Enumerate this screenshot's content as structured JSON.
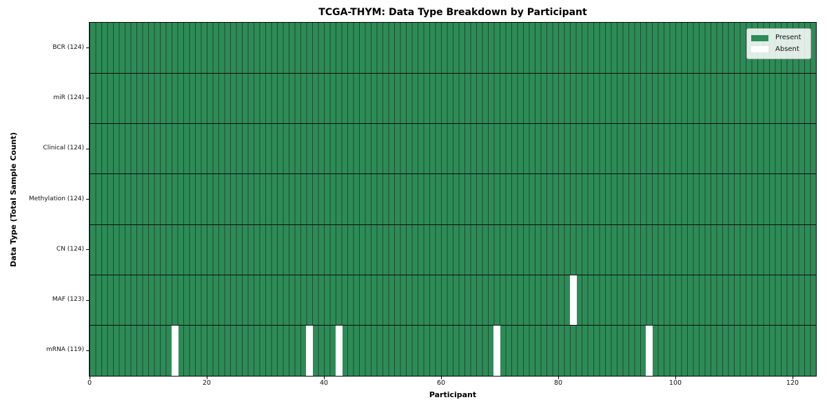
{
  "chart_data": {
    "type": "heatmap",
    "title": "TCGA-THYM: Data Type Breakdown by Participant",
    "xlabel": "Participant",
    "ylabel": "Data Type (Total Sample Count)",
    "x_range": [
      0,
      124
    ],
    "x_ticks": [
      0,
      20,
      40,
      60,
      80,
      100,
      120
    ],
    "n_participants": 124,
    "grid": true,
    "rows": [
      {
        "label": "BCR (124)",
        "data_type": "BCR",
        "total_samples": 124,
        "absent_participants": []
      },
      {
        "label": "miR (124)",
        "data_type": "miR",
        "total_samples": 124,
        "absent_participants": []
      },
      {
        "label": "Clinical (124)",
        "data_type": "Clinical",
        "total_samples": 124,
        "absent_participants": []
      },
      {
        "label": "Methylation (124)",
        "data_type": "Methylation",
        "total_samples": 124,
        "absent_participants": []
      },
      {
        "label": "CN (124)",
        "data_type": "CN",
        "total_samples": 124,
        "absent_participants": []
      },
      {
        "label": "MAF (123)",
        "data_type": "MAF",
        "total_samples": 123,
        "absent_participants": [
          82
        ]
      },
      {
        "label": "mRNA (119)",
        "data_type": "mRNA",
        "total_samples": 119,
        "absent_participants": [
          14,
          37,
          42,
          69,
          95
        ]
      }
    ],
    "legend": {
      "position": "upper right",
      "entries": [
        {
          "label": "Present",
          "color": "#2e8b57"
        },
        {
          "label": "Absent",
          "color": "#ffffff"
        }
      ]
    },
    "colors": {
      "present": "#2e8b57",
      "absent": "#ffffff",
      "cell_edge": "rgba(0,0,0,0.45)",
      "row_separator": "#0d0d0d"
    }
  }
}
